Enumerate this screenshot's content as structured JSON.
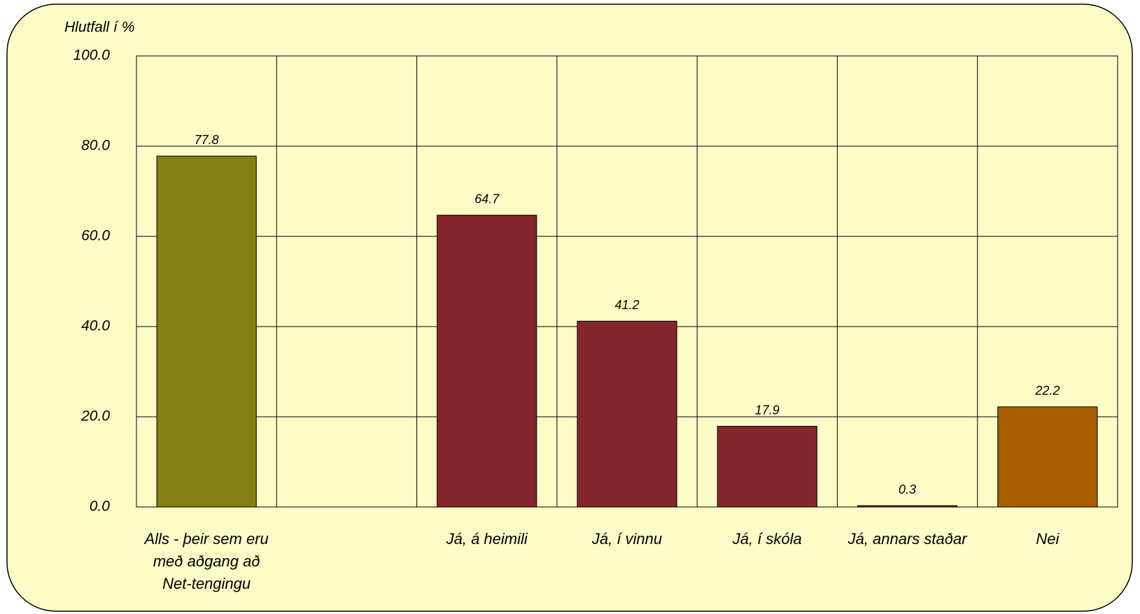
{
  "chart_data": {
    "type": "bar",
    "y_axis_label": "Hlutfall í %",
    "categories": [
      "Alls - þeir sem eru með aðgang að Net-tengingu",
      null,
      "Já, á heimili",
      "Já, í vinnu",
      "Já, í skóla",
      "Já, annars staðar",
      "Nei"
    ],
    "values": [
      77.8,
      null,
      64.7,
      41.2,
      17.9,
      0.3,
      22.2
    ],
    "colors": [
      "#847f14",
      null,
      "#84262e",
      "#84262e",
      "#84262e",
      "#84262e",
      "#a65e00"
    ],
    "ylim": [
      0,
      100
    ],
    "yticks": [
      {
        "value": 0,
        "label": "0.0"
      },
      {
        "value": 20,
        "label": "20.0"
      },
      {
        "value": 40,
        "label": "40.0"
      },
      {
        "value": 60,
        "label": "60.0"
      },
      {
        "value": 80,
        "label": "80.0"
      },
      {
        "value": 100,
        "label": "100.0"
      }
    ],
    "grid": true
  }
}
